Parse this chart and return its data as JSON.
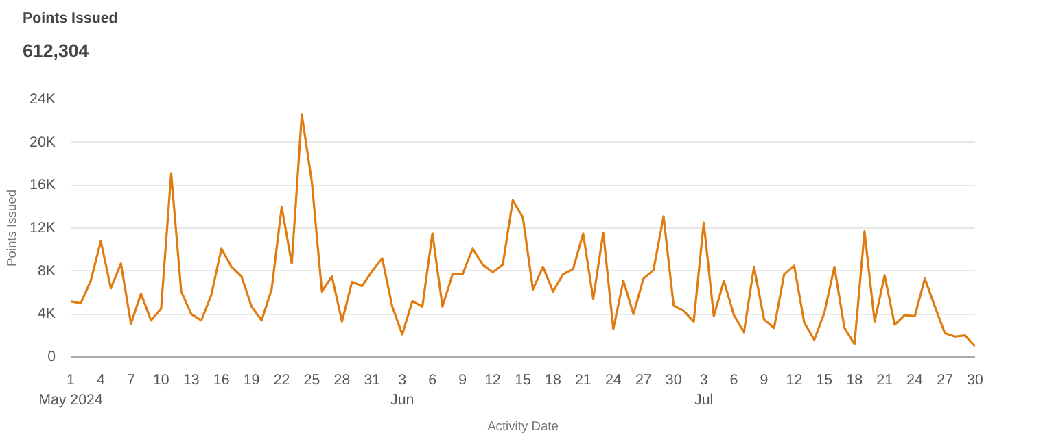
{
  "chart_data": {
    "type": "line",
    "title": "Points Issued",
    "subtitle": "612,304",
    "xlabel": "Activity Date",
    "ylabel": "Points Issued",
    "x": [
      "2024-05-01",
      "2024-05-02",
      "2024-05-03",
      "2024-05-04",
      "2024-05-05",
      "2024-05-06",
      "2024-05-07",
      "2024-05-08",
      "2024-05-09",
      "2024-05-10",
      "2024-05-11",
      "2024-05-12",
      "2024-05-13",
      "2024-05-14",
      "2024-05-15",
      "2024-05-16",
      "2024-05-17",
      "2024-05-18",
      "2024-05-19",
      "2024-05-20",
      "2024-05-21",
      "2024-05-22",
      "2024-05-23",
      "2024-05-24",
      "2024-05-25",
      "2024-05-26",
      "2024-05-27",
      "2024-05-28",
      "2024-05-29",
      "2024-05-30",
      "2024-05-31",
      "2024-06-01",
      "2024-06-02",
      "2024-06-03",
      "2024-06-04",
      "2024-06-05",
      "2024-06-06",
      "2024-06-07",
      "2024-06-08",
      "2024-06-09",
      "2024-06-10",
      "2024-06-11",
      "2024-06-12",
      "2024-06-13",
      "2024-06-14",
      "2024-06-15",
      "2024-06-16",
      "2024-06-17",
      "2024-06-18",
      "2024-06-19",
      "2024-06-20",
      "2024-06-21",
      "2024-06-22",
      "2024-06-23",
      "2024-06-24",
      "2024-06-25",
      "2024-06-26",
      "2024-06-27",
      "2024-06-28",
      "2024-06-29",
      "2024-06-30",
      "2024-07-01",
      "2024-07-02",
      "2024-07-03",
      "2024-07-04",
      "2024-07-05",
      "2024-07-06",
      "2024-07-07",
      "2024-07-08",
      "2024-07-09",
      "2024-07-10",
      "2024-07-11",
      "2024-07-12",
      "2024-07-13",
      "2024-07-14",
      "2024-07-15",
      "2024-07-16",
      "2024-07-17",
      "2024-07-18",
      "2024-07-19",
      "2024-07-20",
      "2024-07-21",
      "2024-07-22",
      "2024-07-23",
      "2024-07-24",
      "2024-07-25",
      "2024-07-26",
      "2024-07-27",
      "2024-07-28",
      "2024-07-29",
      "2024-07-30"
    ],
    "series": [
      {
        "color": "#e07b10",
        "values": [
          5200,
          5000,
          7100,
          10800,
          6400,
          8700,
          3100,
          5900,
          3400,
          4500,
          17100,
          6100,
          4000,
          3400,
          5800,
          10100,
          8400,
          7500,
          4700,
          3400,
          6300,
          14000,
          8700,
          22600,
          16300,
          6100,
          7500,
          3300,
          7000,
          6600,
          8000,
          9200,
          4700,
          2100,
          5200,
          4700,
          11500,
          4700,
          7700,
          7700,
          10100,
          8600,
          7900,
          8600,
          14600,
          13000,
          6300,
          8400,
          6100,
          7700,
          8200,
          11500,
          5400,
          11600,
          2600,
          7100,
          4000,
          7300,
          8100,
          13100,
          4800,
          4300,
          3300,
          12500,
          3800,
          7100,
          3900,
          2300,
          8400,
          3500,
          2700,
          7700,
          8500,
          3200,
          1600,
          4100,
          8400,
          2700,
          1200,
          11700,
          3300,
          7600,
          3000,
          3900,
          3800,
          7300,
          4700,
          2200,
          1900,
          2000,
          1000
        ]
      }
    ],
    "xlim": [
      "2024-05-01",
      "2024-07-30"
    ],
    "xticks": [
      {
        "value": "2024-05-01",
        "label": "1\nMay 2024"
      },
      {
        "value": "2024-05-04",
        "label": "4"
      },
      {
        "value": "2024-05-07",
        "label": "7"
      },
      {
        "value": "2024-05-10",
        "label": "10"
      },
      {
        "value": "2024-05-13",
        "label": "13"
      },
      {
        "value": "2024-05-16",
        "label": "16"
      },
      {
        "value": "2024-05-19",
        "label": "19"
      },
      {
        "value": "2024-05-22",
        "label": "22"
      },
      {
        "value": "2024-05-25",
        "label": "25"
      },
      {
        "value": "2024-05-28",
        "label": "28"
      },
      {
        "value": "2024-05-31",
        "label": "31"
      },
      {
        "value": "2024-06-03",
        "label": "3\nJun"
      },
      {
        "value": "2024-06-06",
        "label": "6"
      },
      {
        "value": "2024-06-09",
        "label": "9"
      },
      {
        "value": "2024-06-12",
        "label": "12"
      },
      {
        "value": "2024-06-15",
        "label": "15"
      },
      {
        "value": "2024-06-18",
        "label": "18"
      },
      {
        "value": "2024-06-21",
        "label": "21"
      },
      {
        "value": "2024-06-24",
        "label": "24"
      },
      {
        "value": "2024-06-27",
        "label": "27"
      },
      {
        "value": "2024-06-30",
        "label": "30"
      },
      {
        "value": "2024-07-03",
        "label": "3\nJul"
      },
      {
        "value": "2024-07-06",
        "label": "6"
      },
      {
        "value": "2024-07-09",
        "label": "9"
      },
      {
        "value": "2024-07-12",
        "label": "12"
      },
      {
        "value": "2024-07-15",
        "label": "15"
      },
      {
        "value": "2024-07-18",
        "label": "18"
      },
      {
        "value": "2024-07-21",
        "label": "21"
      },
      {
        "value": "2024-07-24",
        "label": "24"
      },
      {
        "value": "2024-07-27",
        "label": "27"
      },
      {
        "value": "2024-07-30",
        "label": "30"
      }
    ],
    "ylim": [
      0,
      24000
    ],
    "yticks": [
      0,
      {
        "value": 4000,
        "label": "4K"
      },
      {
        "value": 8000,
        "label": "8K"
      },
      {
        "value": 12000,
        "label": "12K"
      },
      {
        "value": 16000,
        "label": "16K"
      },
      {
        "value": 20000,
        "label": "20K"
      },
      {
        "value": 24000,
        "label": "24K"
      }
    ],
    "grid": "y",
    "marker": "none",
    "line_style": "solid"
  }
}
